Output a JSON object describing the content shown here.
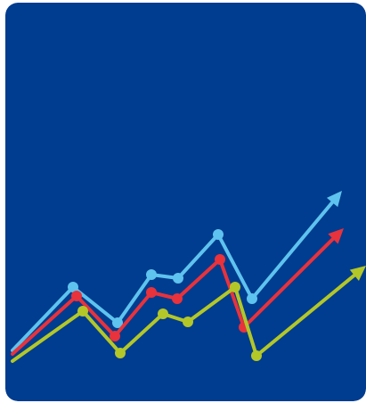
{
  "tile": {
    "icon": "rising-trend-lines-icon",
    "background": "#003C8F"
  },
  "series": [
    {
      "id": "light-blue",
      "color": "#5EC3EE",
      "points": [
        [
          14,
          393
        ],
        [
          82,
          322
        ],
        [
          132,
          362
        ],
        [
          170,
          308
        ],
        [
          200,
          312
        ],
        [
          245,
          263
        ],
        [
          283,
          335
        ],
        [
          384,
          214
        ]
      ]
    },
    {
      "id": "red",
      "color": "#E8323C",
      "points": [
        [
          14,
          397
        ],
        [
          86,
          332
        ],
        [
          129,
          377
        ],
        [
          170,
          328
        ],
        [
          199,
          335
        ],
        [
          247,
          291
        ],
        [
          274,
          367
        ],
        [
          386,
          256
        ]
      ]
    },
    {
      "id": "lime",
      "color": "#B3C728",
      "points": [
        [
          14,
          405
        ],
        [
          93,
          349
        ],
        [
          135,
          396
        ],
        [
          183,
          352
        ],
        [
          211,
          361
        ],
        [
          264,
          322
        ],
        [
          288,
          399
        ],
        [
          411,
          298
        ]
      ]
    }
  ]
}
